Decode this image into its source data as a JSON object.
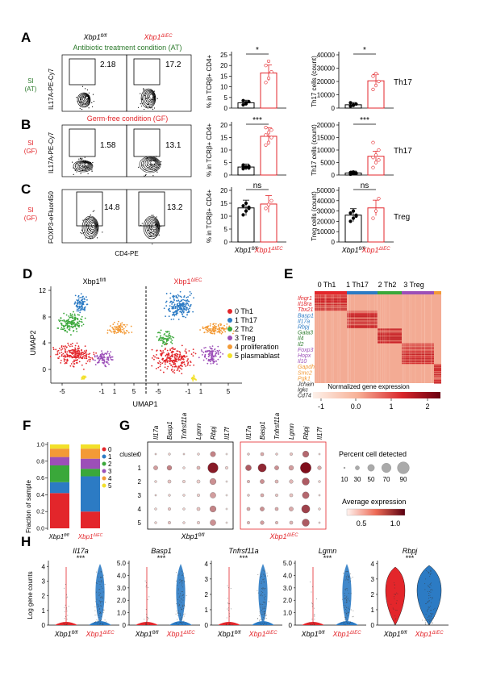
{
  "panels": {
    "A": "A",
    "B": "B",
    "C": "C",
    "D": "D",
    "E": "E",
    "F": "F",
    "G": "G",
    "H": "H"
  },
  "genotypes": {
    "wt": "Xbp1fl/fl",
    "ko": "Xbp1ΔIEC",
    "wt_base": "Xbp1",
    "wt_sup": "fl/fl",
    "ko_base": "Xbp1",
    "ko_sup": "ΔIEC"
  },
  "rowA": {
    "condition": "Antibiotic treatment condition (AT)",
    "tissue_line1": "SI",
    "tissue_line2": "(AT)",
    "ylabel": "IL17A-PE-Cy7",
    "gate_wt": "2.18",
    "gate_ko": "17.2",
    "bar1_ylabel": "% in TCRβ+ CD4+",
    "bar1_ticks": [
      "0",
      "5",
      "10",
      "15",
      "20",
      "25"
    ],
    "bar1_sig": "*",
    "bar1_means": [
      2.5,
      16.5
    ],
    "bar2_ylabel": "Th17 cells (count)",
    "bar2_ticks": [
      "0",
      "10000",
      "20000",
      "30000",
      "40000"
    ],
    "bar2_sig": "*",
    "bar2_means": [
      2500,
      20500
    ],
    "subset": "Th17"
  },
  "rowB": {
    "condition": "Germ-free condition (GF)",
    "tissue_line1": "SI",
    "tissue_line2": "(GF)",
    "ylabel": "IL17A-PE-Cy7",
    "gate_wt": "1.58",
    "gate_ko": "13.1",
    "bar1_ylabel": "% in TCRβ+ CD4+",
    "bar1_ticks": [
      "0",
      "5",
      "10",
      "15",
      "20"
    ],
    "bar1_sig": "***",
    "bar1_means": [
      3.2,
      15.5
    ],
    "bar2_ylabel": "Th17 cells (count)",
    "bar2_ticks": [
      "0",
      "5000",
      "10000",
      "15000",
      "20000"
    ],
    "bar2_sig": "***",
    "bar2_means": [
      800,
      7500
    ],
    "subset": "Th17"
  },
  "rowC": {
    "tissue_line1": "SI",
    "tissue_line2": "(GF)",
    "ylabel": "FOXP3-eFluor450",
    "xlabel": "CD4-PE",
    "gate_wt": "14.8",
    "gate_ko": "13.2",
    "bar1_ylabel": "% in TCRβ+ CD4+",
    "bar1_ticks": [
      "0",
      "5",
      "10",
      "15",
      "20"
    ],
    "bar1_sig": "ns",
    "bar1_means": [
      13.2,
      14.7
    ],
    "bar2_ylabel": "Treg cells (count)",
    "bar2_ticks": [
      "0",
      "10000",
      "20000",
      "30000",
      "40000",
      "50000"
    ],
    "bar2_sig": "ns",
    "bar2_means": [
      26000,
      33000
    ],
    "subset": "Treg"
  },
  "umap": {
    "xlabel": "UMAP1",
    "ylabel": "UMAP2",
    "xticks": [
      "-5",
      "-1",
      "1",
      "5"
    ],
    "yticks": [
      "0",
      "4",
      "8",
      "12"
    ],
    "clusters": [
      {
        "label": "0 Th1",
        "color": "#e3262b"
      },
      {
        "label": "1 Th17",
        "color": "#2c7bc4"
      },
      {
        "label": "2 Th2",
        "color": "#3aa83a"
      },
      {
        "label": "3 Treg",
        "color": "#9c4fb8"
      },
      {
        "label": "4 proliferation",
        "color": "#f39a36"
      },
      {
        "label": "5 plasmablast",
        "color": "#f2e02a"
      }
    ]
  },
  "heatmap": {
    "columns": [
      "0 Th1",
      "1 Th17",
      "2 Th2",
      "3 Treg"
    ],
    "genes": [
      {
        "name": "Ifngr1",
        "color": "#e3262b"
      },
      {
        "name": "Il18ra",
        "color": "#e3262b"
      },
      {
        "name": "Tbx21",
        "color": "#e3262b"
      },
      {
        "name": "Basp1",
        "color": "#2c7bc4"
      },
      {
        "name": "Il17a",
        "color": "#2c7bc4"
      },
      {
        "name": "Rbpj",
        "color": "#2c7bc4"
      },
      {
        "name": "Gata3",
        "color": "#2c7a2c"
      },
      {
        "name": "Il4",
        "color": "#2c7a2c"
      },
      {
        "name": "Il2",
        "color": "#2c7a2c"
      },
      {
        "name": "Foxp3",
        "color": "#9c4fb8"
      },
      {
        "name": "Hopx",
        "color": "#9c4fb8"
      },
      {
        "name": "Il10",
        "color": "#9c4fb8"
      },
      {
        "name": "Gapdh",
        "color": "#f39a36"
      },
      {
        "name": "Smc2",
        "color": "#f39a36"
      },
      {
        "name": "Pgk1",
        "color": "#f39a36"
      },
      {
        "name": "Jchain",
        "color": "#222222"
      },
      {
        "name": "Igkc",
        "color": "#222222"
      },
      {
        "name": "Cd74",
        "color": "#222222"
      }
    ],
    "colorbar_title": "Normalized gene expression",
    "colorbar_ticks": [
      "-1",
      "0.0",
      "1",
      "2"
    ]
  },
  "fraction": {
    "ylabel": "Fraction of sample",
    "yticks": [
      "0.0",
      "0.2",
      "0.4",
      "0.6",
      "0.8",
      "1.0"
    ],
    "wt": [
      0.42,
      0.13,
      0.2,
      0.1,
      0.1,
      0.05
    ],
    "ko": [
      0.2,
      0.42,
      0.09,
      0.12,
      0.12,
      0.05
    ],
    "legend": [
      "0",
      "1",
      "2",
      "3",
      "4",
      "5"
    ]
  },
  "dotplot": {
    "cluster_label": "cluster",
    "genes": [
      "Il17a",
      "Basp1",
      "Tnfrsf11a",
      "Lgmn",
      "Rbpj",
      "Il17f"
    ],
    "clusters": [
      "0",
      "1",
      "2",
      "3",
      "4",
      "5"
    ],
    "wt_size": [
      [
        0.05,
        0.1,
        0.05,
        0.1,
        0.4,
        0.05
      ],
      [
        0.3,
        0.35,
        0.1,
        0.2,
        0.9,
        0.15
      ],
      [
        0.1,
        0.2,
        0.15,
        0.2,
        0.5,
        0.05
      ],
      [
        0.05,
        0.1,
        0.1,
        0.15,
        0.45,
        0.05
      ],
      [
        0.1,
        0.15,
        0.1,
        0.2,
        0.5,
        0.05
      ],
      [
        0.1,
        0.15,
        0.1,
        0.15,
        0.45,
        0.05
      ]
    ],
    "wt_expr": [
      [
        0.3,
        0.3,
        0.3,
        0.3,
        0.6,
        0.2
      ],
      [
        0.5,
        0.6,
        0.3,
        0.4,
        1.0,
        0.3
      ],
      [
        0.3,
        0.35,
        0.3,
        0.3,
        0.55,
        0.2
      ],
      [
        0.3,
        0.3,
        0.3,
        0.3,
        0.5,
        0.2
      ],
      [
        0.3,
        0.35,
        0.3,
        0.35,
        0.6,
        0.2
      ],
      [
        0.3,
        0.35,
        0.3,
        0.3,
        0.55,
        0.2
      ]
    ],
    "ko_size": [
      [
        0.1,
        0.2,
        0.1,
        0.15,
        0.5,
        0.05
      ],
      [
        0.45,
        0.7,
        0.3,
        0.35,
        0.95,
        0.25
      ],
      [
        0.15,
        0.3,
        0.2,
        0.25,
        0.6,
        0.1
      ],
      [
        0.1,
        0.2,
        0.15,
        0.2,
        0.55,
        0.05
      ],
      [
        0.2,
        0.3,
        0.2,
        0.3,
        0.7,
        0.1
      ],
      [
        0.15,
        0.25,
        0.15,
        0.2,
        0.6,
        0.05
      ]
    ],
    "ko_expr": [
      [
        0.35,
        0.45,
        0.35,
        0.35,
        0.7,
        0.25
      ],
      [
        0.75,
        0.95,
        0.55,
        0.5,
        1.05,
        0.45
      ],
      [
        0.4,
        0.55,
        0.4,
        0.4,
        0.75,
        0.3
      ],
      [
        0.35,
        0.45,
        0.35,
        0.35,
        0.7,
        0.25
      ],
      [
        0.45,
        0.55,
        0.45,
        0.45,
        0.85,
        0.3
      ],
      [
        0.4,
        0.5,
        0.4,
        0.4,
        0.75,
        0.25
      ]
    ],
    "size_title": "Percent cell detected",
    "size_ticks": [
      "10",
      "30",
      "50",
      "70",
      "90"
    ],
    "expr_title": "Average expression",
    "expr_ticks": [
      "0.5",
      "1.0"
    ]
  },
  "violin": {
    "ylabel": "Log gene counts",
    "sig": "***",
    "genes": [
      {
        "name": "Il17a",
        "ticks": [
          "0",
          "1",
          "2",
          "3",
          "4"
        ],
        "max": 4.4
      },
      {
        "name": "Basp1",
        "ticks": [
          "0",
          "1.0",
          "2.0",
          "3.0",
          "4.0",
          "5.0"
        ],
        "max": 5.2
      },
      {
        "name": "Tnfrsf11a",
        "ticks": [
          "0",
          "1",
          "2",
          "3",
          "4"
        ],
        "max": 4.2
      },
      {
        "name": "Lgmn",
        "ticks": [
          "0",
          "1.0",
          "2.0",
          "3.0",
          "4.0",
          "5.0"
        ],
        "max": 5.2
      },
      {
        "name": "Rbpj",
        "ticks": [
          "0",
          "1",
          "2",
          "3",
          "4"
        ],
        "max": 4.2
      }
    ]
  }
}
